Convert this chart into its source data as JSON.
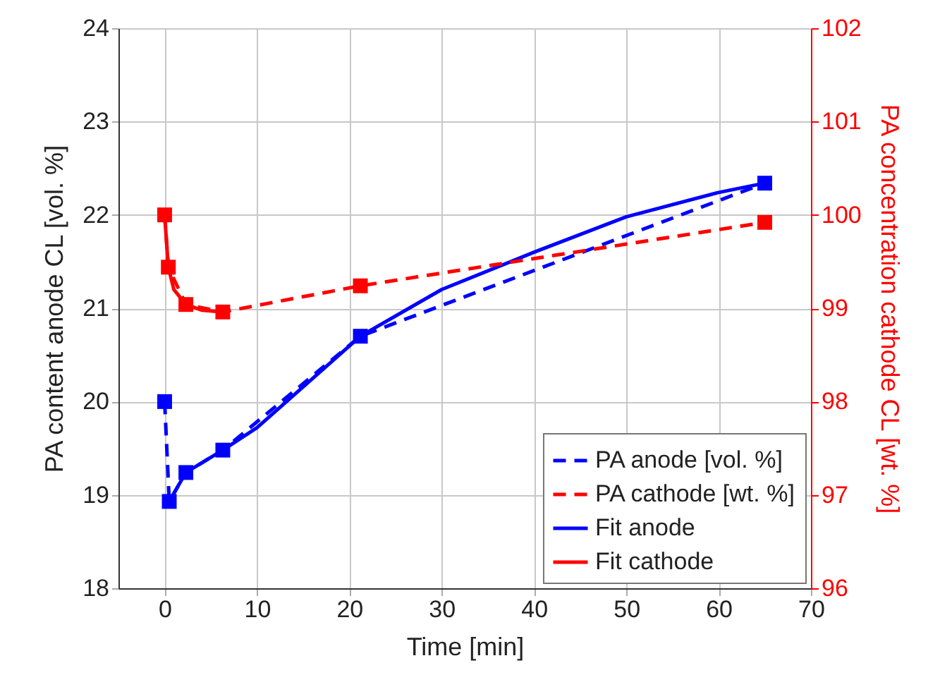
{
  "chart_data": {
    "type": "line",
    "xlabel": "Time [min]",
    "ylabel": "PA content anode CL [vol. %]",
    "y2label": "PA concentration cathode CL [wt. %]",
    "xlim": [
      -5,
      70
    ],
    "xticks": [
      0,
      10,
      20,
      30,
      40,
      50,
      60,
      70
    ],
    "ylim": [
      18,
      24
    ],
    "yticks": [
      18,
      19,
      20,
      21,
      22,
      23,
      24
    ],
    "y2lim": [
      96,
      102
    ],
    "y2ticks": [
      96,
      97,
      98,
      99,
      100,
      101,
      102
    ],
    "grid": true,
    "legend": "bottom right",
    "series": [
      {
        "name": "PA anode [vol. %]",
        "color": "#0000ff",
        "marker": "square",
        "line_style": "dashed",
        "x": [
          0,
          0.5,
          2.3,
          6.3,
          21.2,
          65
        ],
        "values": [
          20.0,
          18.93,
          19.24,
          19.48,
          20.7,
          22.34
        ]
      },
      {
        "name": "PA cathode [wt. %]",
        "color": "#ff0000",
        "axis": "y2",
        "marker": "square",
        "line_style": "dashed",
        "x": [
          0,
          0.4,
          2.3,
          6.3,
          21.2,
          65
        ],
        "values": [
          100.0,
          99.44,
          99.04,
          98.96,
          99.24,
          99.92
        ]
      },
      {
        "name": "Fit anode",
        "color": "#0000ff",
        "marker": "none",
        "line_style": "solid",
        "x": [
          0.5,
          2.3,
          6.3,
          10,
          21.2,
          30,
          40,
          50,
          60,
          65
        ],
        "values": [
          18.93,
          19.24,
          19.48,
          19.72,
          20.7,
          21.2,
          21.6,
          21.98,
          22.24,
          22.34
        ]
      },
      {
        "name": "Fit cathode",
        "color": "#ff0000",
        "axis": "y2",
        "marker": "none",
        "line_style": "solid",
        "x": [
          0,
          0.4,
          1,
          2.3,
          4,
          6.3
        ],
        "values": [
          100.0,
          99.44,
          99.2,
          99.04,
          98.98,
          98.96
        ]
      }
    ]
  }
}
